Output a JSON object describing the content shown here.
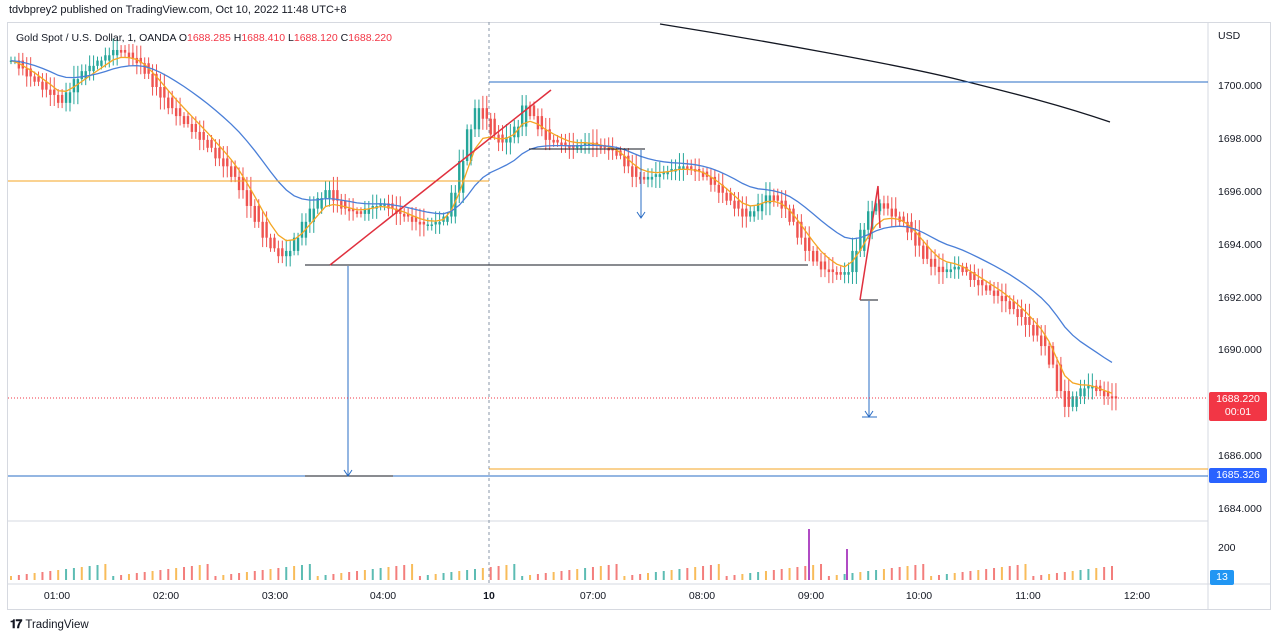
{
  "caption": "tdvbprey2 published on TradingView.com, Oct 10, 2022 11:48 UTC+8",
  "brand": "TradingView",
  "legend": {
    "symbol": "Gold Spot / U.S. Dollar, 1, OANDA",
    "o_label": "O",
    "o": "1688.285",
    "h_label": "H",
    "h": "1688.410",
    "l_label": "L",
    "l": "1688.120",
    "c_label": "C",
    "c": "1688.220"
  },
  "colors": {
    "up": "#26a69a",
    "down": "#ef5350",
    "ema_fast": "#f5a623",
    "ema_slow": "#4a7fd8",
    "ma_long": "#131722",
    "drawing_blue": "#2a6cc4",
    "drawing_red": "#e0303e",
    "drawing_black": "#131722",
    "drawing_orange": "#f5a623",
    "badge_red": "#f23645",
    "badge_blue": "#2962ff",
    "badge_teal": "#2196f3"
  },
  "chart_data": {
    "type": "candlestick",
    "currency": "USD",
    "y_ticks": [
      "1700.000",
      "1698.000",
      "1696.000",
      "1694.000",
      "1692.000",
      "1690.000",
      "1688.000",
      "1686.000",
      "1684.000"
    ],
    "ylim": [
      1683.6,
      1701.9
    ],
    "x_ticks": [
      "01:00",
      "02:00",
      "03:00",
      "04:00",
      "10",
      "07:00",
      "08:00",
      "09:00",
      "10:00",
      "11:00",
      "12:00"
    ],
    "last_price": {
      "value": "1688.220",
      "countdown": "00:01"
    },
    "level_label": "1685.326",
    "volume_axis_label": "200",
    "volume_badge": "13",
    "close_series": [
      1701.0,
      1700.7,
      1700.4,
      1700.2,
      1699.9,
      1699.7,
      1699.4,
      1699.8,
      1700.3,
      1700.6,
      1700.8,
      1701.0,
      1701.2,
      1701.4,
      1701.3,
      1701.1,
      1700.9,
      1700.5,
      1700.0,
      1699.6,
      1699.2,
      1698.9,
      1698.6,
      1698.3,
      1698.0,
      1697.7,
      1697.3,
      1697.0,
      1696.6,
      1696.1,
      1695.5,
      1694.9,
      1694.3,
      1693.9,
      1693.6,
      1693.8,
      1694.3,
      1694.9,
      1695.4,
      1695.8,
      1696.1,
      1695.7,
      1695.4,
      1695.3,
      1695.2,
      1695.4,
      1695.5,
      1695.6,
      1695.4,
      1695.2,
      1695.1,
      1694.9,
      1694.8,
      1694.8,
      1694.9,
      1695.1,
      1696.0,
      1697.2,
      1698.4,
      1699.2,
      1698.8,
      1698.2,
      1697.9,
      1698.1,
      1698.5,
      1699.3,
      1698.9,
      1698.4,
      1698.0,
      1697.9,
      1697.8,
      1697.7,
      1697.8,
      1697.9,
      1697.8,
      1697.7,
      1697.6,
      1697.4,
      1697.0,
      1696.6,
      1696.5,
      1696.6,
      1696.7,
      1696.8,
      1696.9,
      1697.0,
      1696.9,
      1696.8,
      1696.6,
      1696.3,
      1696.0,
      1695.7,
      1695.4,
      1695.1,
      1695.3,
      1695.6,
      1695.9,
      1695.7,
      1695.4,
      1694.9,
      1694.3,
      1693.8,
      1693.4,
      1693.1,
      1693.0,
      1692.9,
      1693.0,
      1693.8,
      1694.6,
      1695.3,
      1695.6,
      1695.4,
      1695.1,
      1694.9,
      1694.5,
      1694.0,
      1693.5,
      1693.2,
      1693.0,
      1693.1,
      1693.2,
      1693.0,
      1692.7,
      1692.5,
      1692.3,
      1692.1,
      1691.9,
      1691.6,
      1691.3,
      1691.0,
      1690.6,
      1690.2,
      1689.5,
      1688.5,
      1687.9,
      1688.3,
      1688.6,
      1688.7,
      1688.5,
      1688.3,
      1688.22
    ]
  }
}
